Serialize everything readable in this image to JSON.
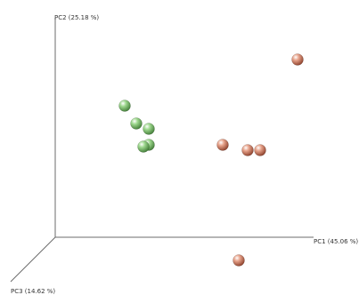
{
  "chart_data": {
    "type": "scatter",
    "title": "",
    "axes": {
      "pc1": "PC1 (45.06 %)",
      "pc2": "PC2 (25.18 %)",
      "pc3": "PC3 (14.62 %)"
    },
    "grid": false,
    "legend": "none",
    "series": [
      {
        "color": "#9fd88f",
        "points": [
          {
            "x": 0.78,
            "y": 0.74
          },
          {
            "x": 0.91,
            "y": 0.64
          },
          {
            "x": 1.05,
            "y": 0.61
          },
          {
            "x": 1.05,
            "y": 0.52
          },
          {
            "x": 0.99,
            "y": 0.51
          }
        ]
      },
      {
        "color": "#e8a48c",
        "points": [
          {
            "x": 2.72,
            "y": 1.0
          },
          {
            "x": 1.88,
            "y": 0.52
          },
          {
            "x": 2.16,
            "y": 0.49
          },
          {
            "x": 2.3,
            "y": 0.49
          },
          {
            "x": 2.06,
            "y": -0.13
          }
        ]
      }
    ]
  }
}
